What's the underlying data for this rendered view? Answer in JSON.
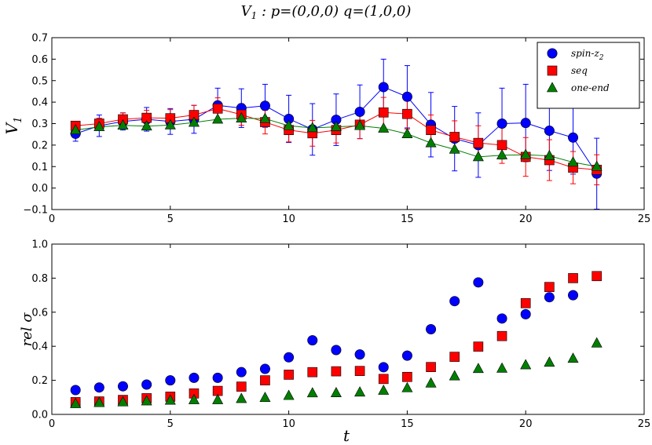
{
  "title_parts": {
    "v": "V",
    "sub": "1",
    "rest": " : p=(0,0,0)  q=(1,0,0)"
  },
  "colors": {
    "spin": "#0000ff",
    "seq": "#ff0000",
    "one": "#007f00",
    "text": "#000000"
  },
  "chart_data": [
    {
      "type": "line",
      "title": "V1 : p=(0,0,0)  q=(1,0,0)",
      "xlabel": "",
      "ylabel": "V1",
      "ylabel_v": "V",
      "ylabel_sub": "1",
      "xlim": [
        0,
        25
      ],
      "ylim": [
        -0.1,
        0.7
      ],
      "xticks": [
        0,
        5,
        10,
        15,
        20,
        25
      ],
      "xtick_labels": [
        "0",
        "5",
        "10",
        "15",
        "20",
        "25"
      ],
      "yticks": [
        -0.1,
        0.0,
        0.1,
        0.2,
        0.3,
        0.4,
        0.5,
        0.6,
        0.7
      ],
      "ytick_labels": [
        "−0.1",
        "0.0",
        "0.1",
        "0.2",
        "0.3",
        "0.4",
        "0.5",
        "0.6",
        "0.7"
      ],
      "x": [
        1,
        2,
        3,
        4,
        5,
        6,
        7,
        8,
        9,
        10,
        11,
        12,
        13,
        14,
        15,
        16,
        17,
        18,
        19,
        20,
        21,
        22,
        23
      ],
      "series": [
        {
          "name": "spin-z2",
          "marker": "circle",
          "color_key": "spin",
          "values": [
            0.253,
            0.29,
            0.31,
            0.32,
            0.31,
            0.32,
            0.385,
            0.372,
            0.383,
            0.322,
            0.273,
            0.318,
            0.355,
            0.47,
            0.425,
            0.295,
            0.23,
            0.2,
            0.3,
            0.303,
            0.267,
            0.235,
            0.067
          ],
          "errors": [
            0.035,
            0.05,
            0.04,
            0.055,
            0.06,
            0.065,
            0.08,
            0.09,
            0.1,
            0.11,
            0.12,
            0.12,
            0.125,
            0.13,
            0.145,
            0.15,
            0.15,
            0.15,
            0.165,
            0.18,
            0.185,
            0.17,
            0.165
          ]
        },
        {
          "name": "seq",
          "marker": "square",
          "color_key": "seq",
          "values": [
            0.29,
            0.3,
            0.32,
            0.327,
            0.325,
            0.34,
            0.37,
            0.342,
            0.307,
            0.27,
            0.255,
            0.27,
            0.295,
            0.352,
            0.345,
            0.27,
            0.238,
            0.21,
            0.2,
            0.145,
            0.13,
            0.095,
            0.085
          ],
          "errors": [
            0.02,
            0.025,
            0.03,
            0.035,
            0.04,
            0.045,
            0.05,
            0.05,
            0.055,
            0.055,
            0.06,
            0.06,
            0.065,
            0.07,
            0.07,
            0.07,
            0.075,
            0.08,
            0.085,
            0.09,
            0.095,
            0.075,
            0.07
          ]
        },
        {
          "name": "one-end",
          "marker": "triangle",
          "color_key": "one",
          "values": [
            0.27,
            0.285,
            0.292,
            0.288,
            0.293,
            0.305,
            0.32,
            0.325,
            0.323,
            0.29,
            0.28,
            0.285,
            0.29,
            0.278,
            0.252,
            0.21,
            0.18,
            0.145,
            0.153,
            0.155,
            0.15,
            0.12,
            0.1
          ]
        }
      ],
      "legend": {
        "placement": "top-right",
        "entries": [
          {
            "v": "spin-z",
            "sub": "2"
          },
          {
            "v": "seq",
            "sub": ""
          },
          {
            "v": "one-end",
            "sub": ""
          }
        ]
      }
    },
    {
      "type": "scatter",
      "title": "",
      "xlabel": "t",
      "ylabel": "rel σ",
      "xlim": [
        0,
        25
      ],
      "ylim": [
        0.0,
        1.0
      ],
      "xticks": [
        0,
        5,
        10,
        15,
        20,
        25
      ],
      "xtick_labels": [
        "0",
        "5",
        "10",
        "15",
        "20",
        "25"
      ],
      "yticks": [
        0.0,
        0.2,
        0.4,
        0.6,
        0.8,
        1.0
      ],
      "ytick_labels": [
        "0.0",
        "0.2",
        "0.4",
        "0.6",
        "0.8",
        "1.0"
      ],
      "x": [
        1,
        2,
        3,
        4,
        5,
        6,
        7,
        8,
        9,
        10,
        11,
        12,
        13,
        14,
        15,
        16,
        17,
        18,
        19,
        20,
        21,
        22,
        23
      ],
      "series": [
        {
          "name": "spin-z2",
          "marker": "circle",
          "color_key": "spin",
          "x": [
            1,
            2,
            3,
            4,
            5,
            6,
            7,
            8,
            9,
            10,
            11,
            12,
            13,
            14,
            15,
            16,
            17,
            18,
            19,
            20,
            21,
            22
          ],
          "values": [
            0.143,
            0.158,
            0.165,
            0.175,
            0.2,
            0.215,
            0.215,
            0.248,
            0.267,
            0.335,
            0.435,
            0.378,
            0.352,
            0.277,
            0.345,
            0.5,
            0.665,
            0.775,
            0.563,
            0.588,
            0.688,
            0.7
          ]
        },
        {
          "name": "seq",
          "marker": "square",
          "color_key": "seq",
          "values": [
            0.072,
            0.076,
            0.085,
            0.095,
            0.104,
            0.123,
            0.138,
            0.163,
            0.2,
            0.233,
            0.248,
            0.253,
            0.255,
            0.208,
            0.22,
            0.278,
            0.338,
            0.398,
            0.46,
            0.653,
            0.748,
            0.8,
            0.812
          ]
        },
        {
          "name": "one-end",
          "marker": "triangle",
          "color_key": "one",
          "values": [
            0.062,
            0.068,
            0.072,
            0.078,
            0.082,
            0.085,
            0.085,
            0.092,
            0.098,
            0.11,
            0.125,
            0.126,
            0.13,
            0.14,
            0.155,
            0.183,
            0.225,
            0.268,
            0.27,
            0.29,
            0.305,
            0.328,
            0.418
          ]
        }
      ]
    }
  ]
}
